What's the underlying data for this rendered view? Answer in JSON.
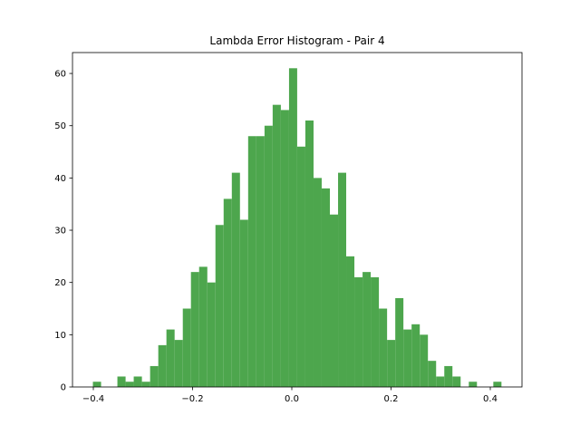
{
  "chart_data": {
    "type": "histogram",
    "title": "Lambda Error Histogram - Pair 4",
    "bins": [
      -0.4009,
      -0.3844,
      -0.368,
      -0.3515,
      -0.335,
      -0.3186,
      -0.3021,
      -0.2856,
      -0.2691,
      -0.2527,
      -0.2362,
      -0.2197,
      -0.2033,
      -0.1868,
      -0.1703,
      -0.1539,
      -0.1374,
      -0.1209,
      -0.1045,
      -0.088,
      -0.0715,
      -0.055,
      -0.0386,
      -0.0221,
      -0.0056,
      0.0108,
      0.0273,
      0.0438,
      0.0602,
      0.0767,
      0.0932,
      0.1096,
      0.1261,
      0.1426,
      0.159,
      0.1755,
      0.192,
      0.2085,
      0.2249,
      0.2414,
      0.2579,
      0.2743,
      0.2908,
      0.3073,
      0.3237,
      0.3402,
      0.3567,
      0.3731,
      0.3896,
      0.4061,
      0.4225
    ],
    "values": [
      1,
      0,
      0,
      2,
      1,
      2,
      1,
      4,
      8,
      11,
      9,
      15,
      22,
      23,
      20,
      31,
      36,
      41,
      32,
      48,
      48,
      50,
      54,
      53,
      61,
      46,
      51,
      40,
      38,
      33,
      41,
      25,
      21,
      22,
      21,
      15,
      9,
      17,
      11,
      12,
      10,
      5,
      2,
      4,
      2,
      0,
      1,
      0,
      0,
      1
    ],
    "color": "#4da64d",
    "xlim": [
      -0.442,
      0.4639
    ],
    "xticks": [
      {
        "value": -0.4,
        "label": "−0.4"
      },
      {
        "value": -0.2,
        "label": "−0.2"
      },
      {
        "value": 0,
        "label": "0.0"
      },
      0.2,
      0.4
    ],
    "ylim": [
      0,
      64
    ],
    "yticks": [
      0,
      10,
      20,
      30,
      40,
      50,
      60
    ]
  }
}
